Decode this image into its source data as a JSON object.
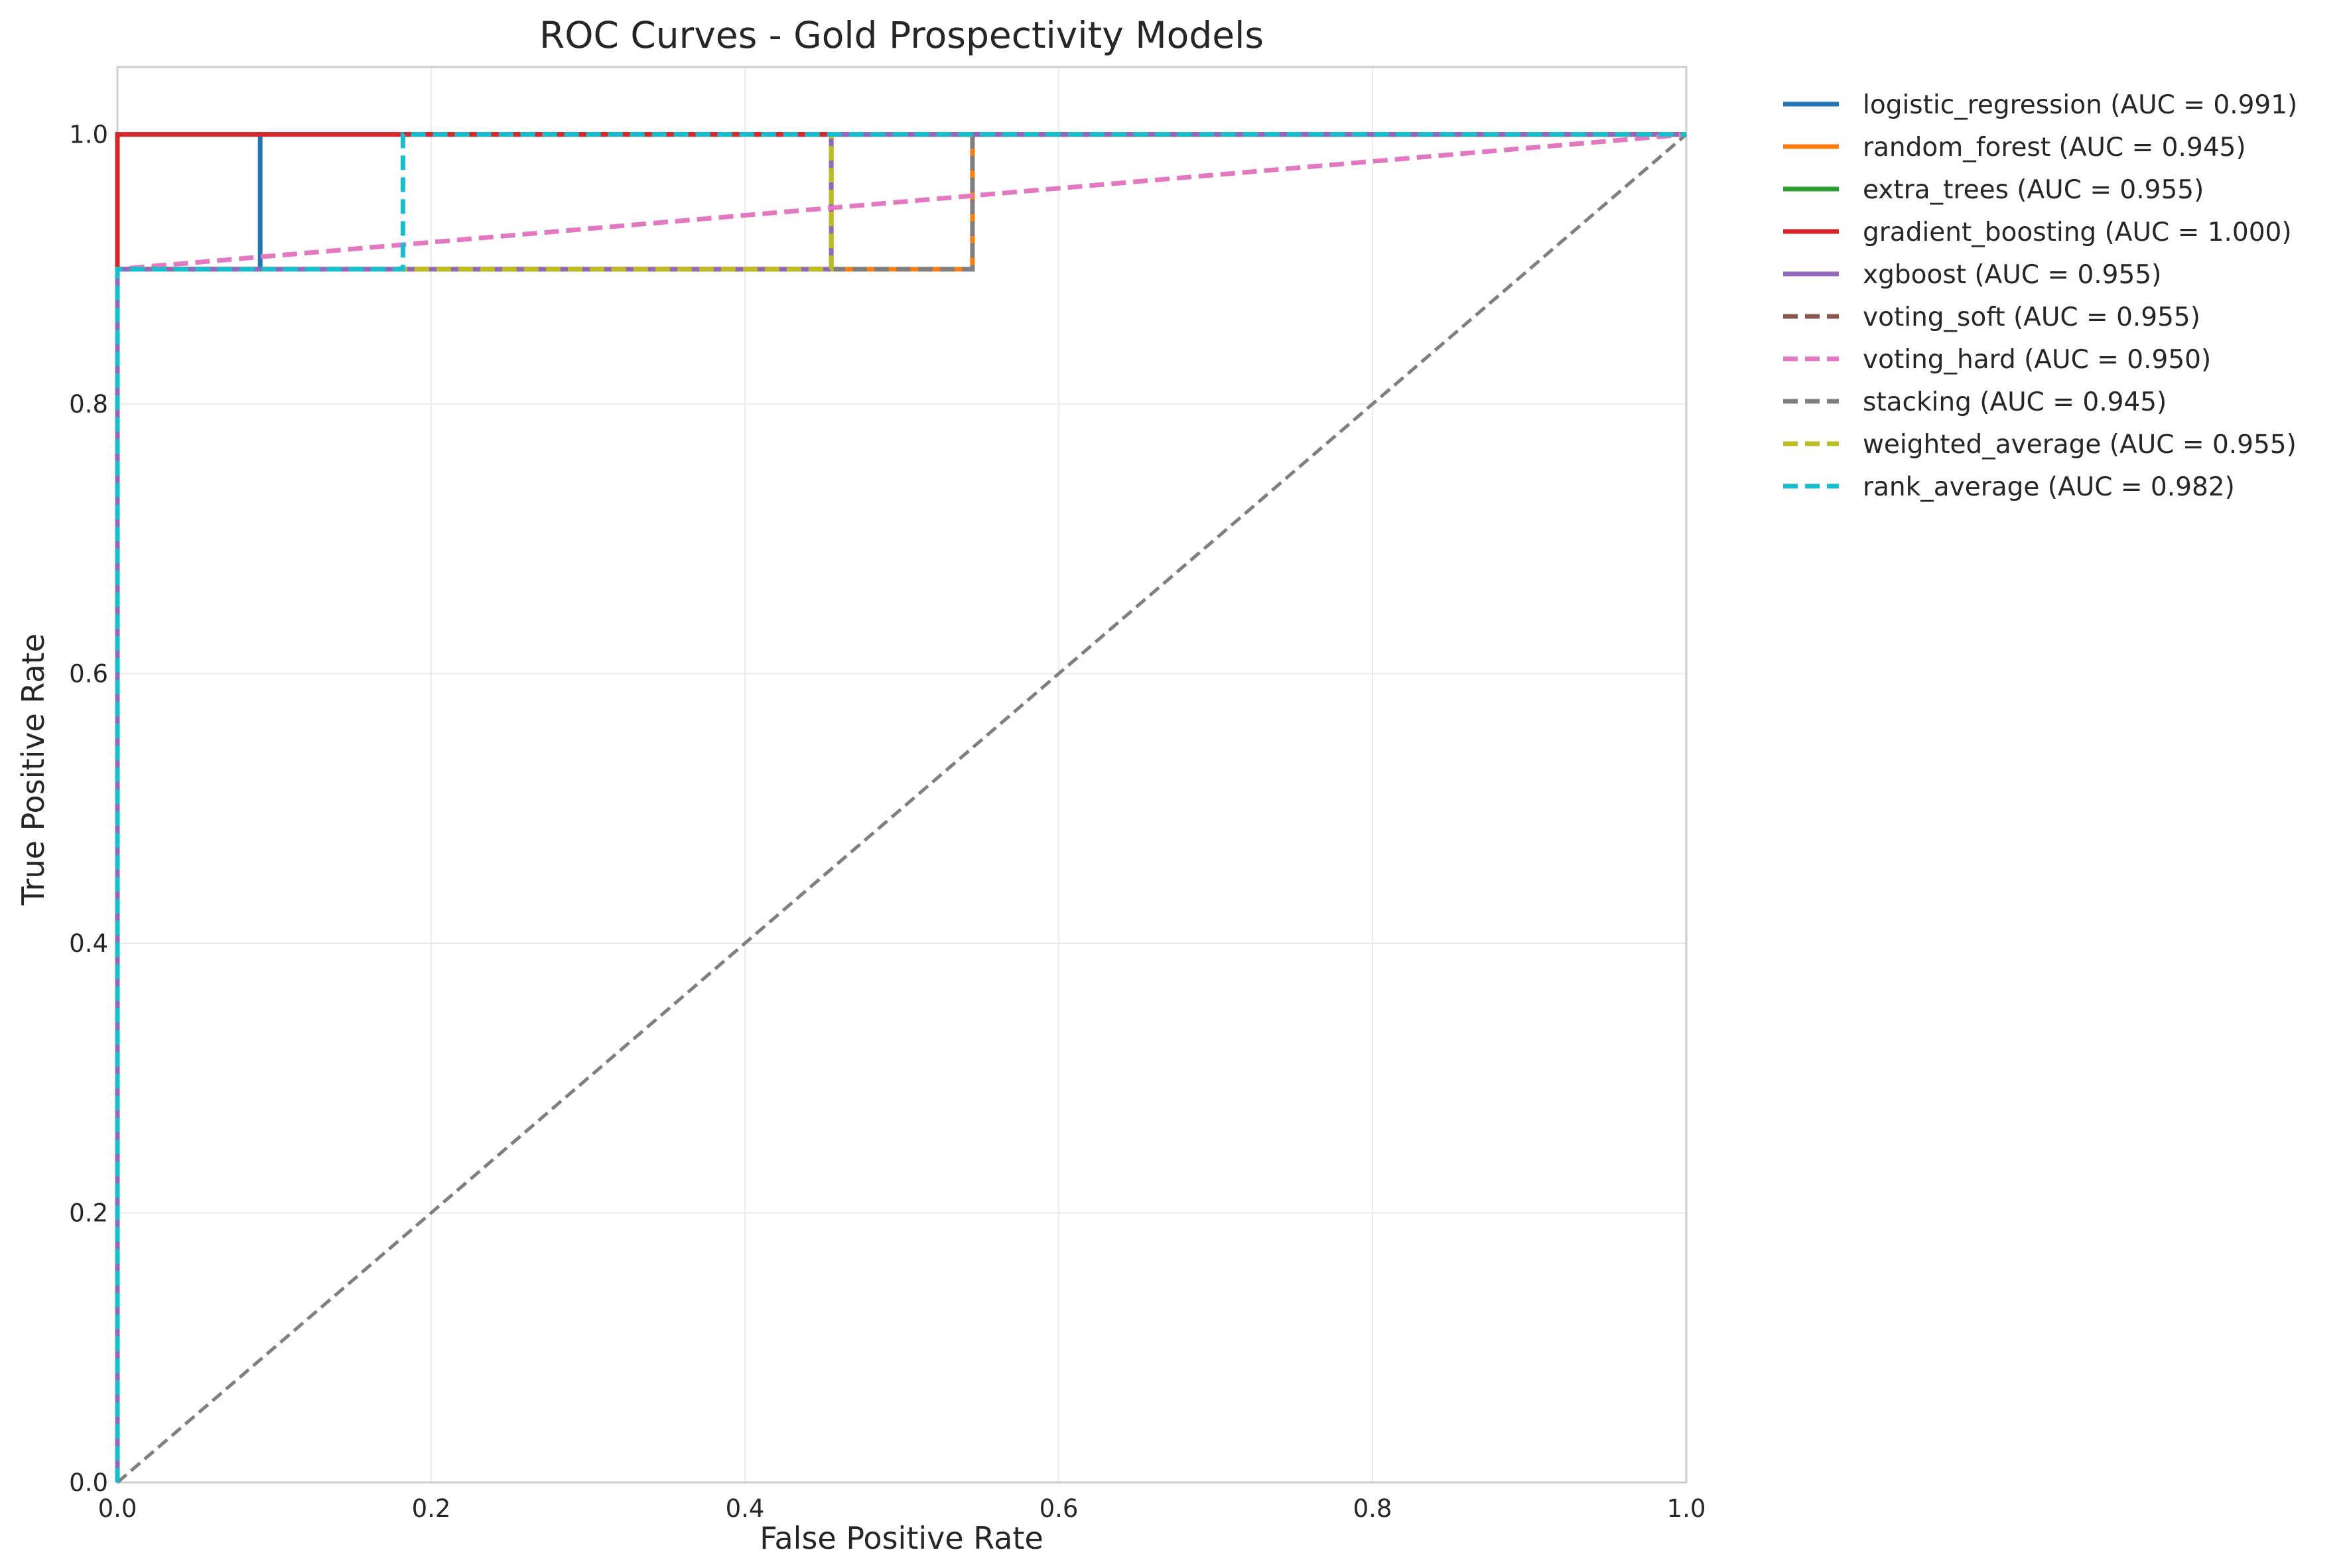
{
  "chart_data": {
    "type": "line",
    "title": "ROC Curves - Gold Prospectivity Models",
    "xlabel": "False Positive Rate",
    "ylabel": "True Positive Rate",
    "xlim": [
      0,
      1
    ],
    "ylim": [
      0,
      1.05
    ],
    "xticks": [
      "0.0",
      "0.2",
      "0.4",
      "0.6",
      "0.8",
      "1.0"
    ],
    "yticks": [
      "0.0",
      "0.2",
      "0.4",
      "0.6",
      "0.8",
      "1.0"
    ],
    "grid": true,
    "legend_position": "outside-right",
    "series": [
      {
        "name": "logistic_regression (AUC = 0.991)",
        "color": "#1f77b4",
        "dash": "solid",
        "x": [
          0,
          0,
          0.091,
          0.091,
          1
        ],
        "y": [
          0,
          0.9,
          0.9,
          1.0,
          1.0
        ]
      },
      {
        "name": "random_forest (AUC = 0.945)",
        "color": "#ff7f0e",
        "dash": "solid",
        "x": [
          0,
          0,
          0.545,
          0.545,
          1
        ],
        "y": [
          0,
          0.9,
          0.9,
          1.0,
          1.0
        ]
      },
      {
        "name": "extra_trees (AUC = 0.955)",
        "color": "#2ca02c",
        "dash": "solid",
        "x": [
          0,
          0,
          0.455,
          0.455,
          1
        ],
        "y": [
          0,
          0.9,
          0.9,
          1.0,
          1.0
        ]
      },
      {
        "name": "gradient_boosting (AUC = 1.000)",
        "color": "#d62728",
        "dash": "solid",
        "x": [
          0,
          0,
          1
        ],
        "y": [
          0,
          1.0,
          1.0
        ]
      },
      {
        "name": "xgboost (AUC = 0.955)",
        "color": "#9467bd",
        "dash": "solid",
        "x": [
          0,
          0,
          0.455,
          0.455,
          1
        ],
        "y": [
          0,
          0.9,
          0.9,
          1.0,
          1.0
        ]
      },
      {
        "name": "voting_soft (AUC = 0.955)",
        "color": "#8c564b",
        "dash": "dashed",
        "x": [
          0,
          0,
          0.455,
          0.455,
          1
        ],
        "y": [
          0,
          0.9,
          0.9,
          1.0,
          1.0
        ]
      },
      {
        "name": "voting_hard (AUC = 0.950)",
        "color": "#e377c2",
        "dash": "dashed",
        "x": [
          0,
          0,
          1
        ],
        "y": [
          0,
          0.9,
          1.0
        ]
      },
      {
        "name": "stacking (AUC = 0.945)",
        "color": "#7f7f7f",
        "dash": "dashed",
        "x": [
          0,
          0,
          0.545,
          0.545,
          1
        ],
        "y": [
          0,
          0.9,
          0.9,
          1.0,
          1.0
        ]
      },
      {
        "name": "weighted_average (AUC = 0.955)",
        "color": "#bcbd22",
        "dash": "dashed",
        "x": [
          0,
          0,
          0.455,
          0.455,
          1
        ],
        "y": [
          0,
          0.9,
          0.9,
          1.0,
          1.0
        ]
      },
      {
        "name": "rank_average (AUC = 0.982)",
        "color": "#17becf",
        "dash": "dashed",
        "x": [
          0,
          0,
          0.182,
          0.182,
          1
        ],
        "y": [
          0,
          0.9,
          0.9,
          1.0,
          1.0
        ]
      }
    ],
    "reference_line": {
      "color": "#7f7f7f",
      "dash": "dashed",
      "x": [
        0,
        1
      ],
      "y": [
        0,
        1
      ]
    }
  }
}
